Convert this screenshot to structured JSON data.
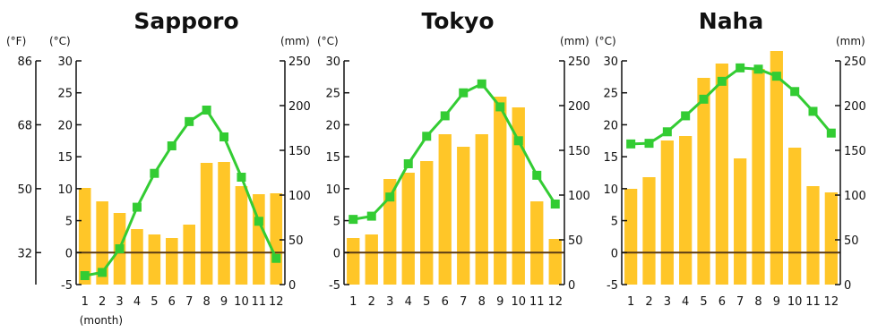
{
  "colors": {
    "precipitation": "#FFC628",
    "temperature": "#33CC33",
    "axis": "#111111",
    "zero_line": "#5A3A14"
  },
  "chart_data": [
    {
      "type": "bar",
      "title": "Sapporo",
      "units": {
        "fahrenheit": "(°F)",
        "celsius": "(°C)",
        "precip": "(mm)"
      },
      "month_label": "(month)",
      "fahrenheit_ticks": [
        "86",
        "68",
        "50",
        "32"
      ],
      "categories": [
        "1",
        "2",
        "3",
        "4",
        "5",
        "6",
        "7",
        "8",
        "9",
        "10",
        "11",
        "12"
      ],
      "series": [
        {
          "role": "precipitation",
          "axis": "right",
          "values": [
            108,
            93,
            80,
            62,
            56,
            52,
            67,
            136,
            137,
            110,
            101,
            102
          ]
        },
        {
          "role": "temperature",
          "axis": "left",
          "values": [
            -3.6,
            -3.1,
            0.6,
            7.1,
            12.4,
            16.7,
            20.5,
            22.3,
            18.1,
            11.8,
            4.9,
            -0.9
          ]
        }
      ],
      "ylim_left": [
        -5,
        30
      ],
      "ylim_right": [
        0,
        250
      ],
      "yticks_left": [
        "30",
        "25",
        "20",
        "15",
        "10",
        "5",
        "0",
        "-5"
      ],
      "yticks_right": [
        "250",
        "200",
        "150",
        "100",
        "50",
        "0"
      ]
    },
    {
      "type": "bar",
      "title": "Tokyo",
      "units": {
        "celsius": "(°C)",
        "precip": "(mm)"
      },
      "categories": [
        "1",
        "2",
        "3",
        "4",
        "5",
        "6",
        "7",
        "8",
        "9",
        "10",
        "11",
        "12"
      ],
      "series": [
        {
          "role": "precipitation",
          "axis": "right",
          "values": [
            52,
            56,
            118,
            125,
            138,
            168,
            154,
            168,
            210,
            198,
            93,
            51
          ]
        },
        {
          "role": "temperature",
          "axis": "left",
          "values": [
            5.2,
            5.7,
            8.7,
            13.9,
            18.2,
            21.4,
            25.0,
            26.4,
            22.8,
            17.5,
            12.1,
            7.6
          ]
        }
      ],
      "ylim_left": [
        -5,
        30
      ],
      "ylim_right": [
        0,
        250
      ],
      "yticks_left": [
        "30",
        "25",
        "20",
        "15",
        "10",
        "5",
        "0",
        "-5"
      ],
      "yticks_right": [
        "250",
        "200",
        "150",
        "100",
        "50",
        "0"
      ]
    },
    {
      "type": "bar",
      "title": "Naha",
      "units": {
        "celsius": "(°C)",
        "precip": "(mm)"
      },
      "categories": [
        "1",
        "2",
        "3",
        "4",
        "5",
        "6",
        "7",
        "8",
        "9",
        "10",
        "11",
        "12"
      ],
      "series": [
        {
          "role": "precipitation",
          "axis": "right",
          "values": [
            107,
            120,
            161,
            166,
            231,
            247,
            141,
            241,
            261,
            153,
            110,
            103
          ]
        },
        {
          "role": "temperature",
          "axis": "left",
          "values": [
            17.0,
            17.1,
            18.9,
            21.4,
            24.0,
            26.8,
            28.9,
            28.7,
            27.6,
            25.2,
            22.1,
            18.7
          ]
        }
      ],
      "ylim_left": [
        -5,
        30
      ],
      "ylim_right": [
        0,
        250
      ],
      "yticks_left": [
        "30",
        "25",
        "20",
        "15",
        "10",
        "5",
        "0",
        "-5"
      ],
      "yticks_right": [
        "250",
        "200",
        "150",
        "100",
        "50",
        "0"
      ]
    }
  ]
}
